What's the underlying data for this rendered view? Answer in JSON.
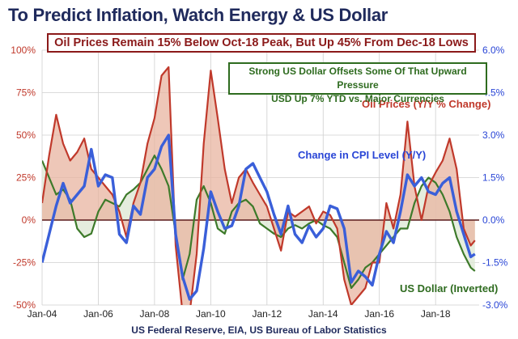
{
  "title": "To Predict Inflation, Watch Energy & US Dollar",
  "annotation_oil_box": "Oil Prices Remain 15% Below Oct-18 Peak, But Up 45% From Dec-18 Lows",
  "annotation_usd_line1": "Strong US Dollar Offsets Some Of That Upward Pressure",
  "annotation_usd_line2": "USD Up 7% YTD vs. Major Currencies",
  "source": "US Federal Reserve, EIA, US Bureau of Labor Statistics",
  "colors": {
    "oil": "#c0392b",
    "oil_fill": "#e8b4a0",
    "cpi": "#3a5fd9",
    "usd": "#3d7a2a",
    "usd_fill": "#dfe9d6"
  },
  "chart_data": {
    "type": "line",
    "x_ticks": [
      "Jan-04",
      "Jan-06",
      "Jan-08",
      "Jan-10",
      "Jan-12",
      "Jan-14",
      "Jan-16",
      "Jan-18"
    ],
    "left_axis": {
      "ticks": [
        "100%",
        "75%",
        "50%",
        "25%",
        "0%",
        "-25%",
        "-50%"
      ],
      "ylim": [
        -50,
        100
      ]
    },
    "right_axis": {
      "ticks": [
        "6.0%",
        "4.5%",
        "3.0%",
        "1.5%",
        "0.0%",
        "-1.5%",
        "-3.0%"
      ],
      "ylim": [
        -3.0,
        6.0
      ]
    },
    "series_labels": {
      "oil": "Oil Prices (Y/Y % Change)",
      "cpi": "Change in CPI Level (Y/Y)",
      "usd": "US Dollar (Inverted)"
    },
    "series": [
      {
        "name": "Oil Prices (Y/Y % Change)",
        "axis": "left",
        "x": [
          2004.0,
          2004.25,
          2004.5,
          2004.75,
          2005.0,
          2005.25,
          2005.5,
          2005.75,
          2006.0,
          2006.25,
          2006.5,
          2006.75,
          2007.0,
          2007.25,
          2007.5,
          2007.75,
          2008.0,
          2008.25,
          2008.5,
          2008.75,
          2009.0,
          2009.25,
          2009.5,
          2009.75,
          2010.0,
          2010.25,
          2010.5,
          2010.75,
          2011.0,
          2011.25,
          2011.5,
          2011.75,
          2012.0,
          2012.25,
          2012.5,
          2012.75,
          2013.0,
          2013.25,
          2013.5,
          2013.75,
          2014.0,
          2014.25,
          2014.5,
          2014.75,
          2015.0,
          2015.25,
          2015.5,
          2015.75,
          2016.0,
          2016.25,
          2016.5,
          2016.75,
          2017.0,
          2017.25,
          2017.5,
          2017.75,
          2018.0,
          2018.25,
          2018.5,
          2018.75,
          2019.0,
          2019.25,
          2019.4
        ],
        "values": [
          10,
          38,
          62,
          45,
          35,
          40,
          48,
          30,
          25,
          20,
          15,
          5,
          -10,
          10,
          22,
          45,
          60,
          85,
          90,
          -15,
          -55,
          -55,
          -20,
          45,
          88,
          60,
          30,
          10,
          25,
          30,
          22,
          15,
          8,
          -5,
          -18,
          5,
          2,
          5,
          8,
          -2,
          5,
          3,
          -5,
          -35,
          -50,
          -45,
          -40,
          -25,
          -25,
          10,
          -5,
          15,
          58,
          20,
          0,
          20,
          28,
          35,
          48,
          30,
          -5,
          -15,
          -12
        ]
      },
      {
        "name": "Change in CPI Level (Y/Y)",
        "axis": "right",
        "x": [
          2004.0,
          2004.25,
          2004.5,
          2004.75,
          2005.0,
          2005.25,
          2005.5,
          2005.75,
          2006.0,
          2006.25,
          2006.5,
          2006.75,
          2007.0,
          2007.25,
          2007.5,
          2007.75,
          2008.0,
          2008.25,
          2008.5,
          2008.75,
          2009.0,
          2009.25,
          2009.5,
          2009.75,
          2010.0,
          2010.25,
          2010.5,
          2010.75,
          2011.0,
          2011.25,
          2011.5,
          2011.75,
          2012.0,
          2012.25,
          2012.5,
          2012.75,
          2013.0,
          2013.25,
          2013.5,
          2013.75,
          2014.0,
          2014.25,
          2014.5,
          2014.75,
          2015.0,
          2015.25,
          2015.5,
          2015.75,
          2016.0,
          2016.25,
          2016.5,
          2016.75,
          2017.0,
          2017.25,
          2017.5,
          2017.75,
          2018.0,
          2018.25,
          2018.5,
          2018.75,
          2019.0,
          2019.25,
          2019.4
        ],
        "values": [
          -1.5,
          -0.5,
          0.5,
          1.3,
          0.6,
          0.9,
          1.2,
          2.5,
          1.2,
          1.6,
          1.5,
          -0.5,
          -0.8,
          0.5,
          0.2,
          1.5,
          1.8,
          2.6,
          3.0,
          -0.5,
          -2.0,
          -2.8,
          -2.5,
          -1.0,
          1.0,
          0.3,
          -0.3,
          -0.2,
          0.5,
          1.8,
          2.0,
          1.5,
          1.0,
          0.2,
          -0.5,
          0.5,
          -0.5,
          -0.8,
          -0.2,
          -0.6,
          -0.3,
          0.5,
          0.4,
          -0.3,
          -2.2,
          -1.8,
          -2.0,
          -2.3,
          -1.2,
          -0.4,
          -0.8,
          0.3,
          1.6,
          1.2,
          1.5,
          1.0,
          0.9,
          1.3,
          1.5,
          0.3,
          -0.5,
          -1.3,
          -1.2
        ]
      },
      {
        "name": "US Dollar (Inverted)",
        "axis": "left",
        "x": [
          2004.0,
          2004.25,
          2004.5,
          2004.75,
          2005.0,
          2005.25,
          2005.5,
          2005.75,
          2006.0,
          2006.25,
          2006.5,
          2006.75,
          2007.0,
          2007.25,
          2007.5,
          2007.75,
          2008.0,
          2008.25,
          2008.5,
          2008.75,
          2009.0,
          2009.25,
          2009.5,
          2009.75,
          2010.0,
          2010.25,
          2010.5,
          2010.75,
          2011.0,
          2011.25,
          2011.5,
          2011.75,
          2012.0,
          2012.25,
          2012.5,
          2012.75,
          2013.0,
          2013.25,
          2013.5,
          2013.75,
          2014.0,
          2014.25,
          2014.5,
          2014.75,
          2015.0,
          2015.25,
          2015.5,
          2015.75,
          2016.0,
          2016.25,
          2016.5,
          2016.75,
          2017.0,
          2017.25,
          2017.5,
          2017.75,
          2018.0,
          2018.25,
          2018.5,
          2018.75,
          2019.0,
          2019.25,
          2019.4
        ],
        "values": [
          35,
          25,
          15,
          18,
          12,
          -5,
          -10,
          -8,
          5,
          12,
          10,
          8,
          15,
          18,
          22,
          30,
          38,
          30,
          20,
          -8,
          -35,
          -20,
          12,
          20,
          10,
          -5,
          -8,
          5,
          10,
          12,
          8,
          -2,
          -5,
          -8,
          -10,
          -5,
          -3,
          -5,
          -2,
          0,
          -3,
          -5,
          -10,
          -25,
          -40,
          -35,
          -28,
          -25,
          -20,
          -15,
          -10,
          -5,
          -5,
          10,
          20,
          25,
          22,
          15,
          5,
          -10,
          -20,
          -28,
          -30
        ]
      }
    ]
  }
}
